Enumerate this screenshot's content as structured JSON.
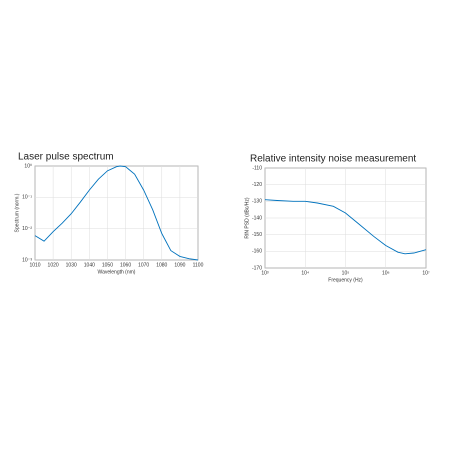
{
  "chart_data": [
    {
      "type": "line",
      "title": "Laser pulse spectrum",
      "x_label": "Wavelength (nm)",
      "y_label": "Spectrum (norm.)",
      "x": [
        1010,
        1015,
        1020,
        1025,
        1030,
        1035,
        1040,
        1045,
        1050,
        1055,
        1057,
        1060,
        1065,
        1070,
        1075,
        1080,
        1085,
        1090,
        1095,
        1100
      ],
      "series": [
        {
          "name": "Spectrum",
          "color": "#0072bd",
          "values": [
            0.006,
            0.004,
            0.008,
            0.015,
            0.03,
            0.07,
            0.17,
            0.38,
            0.7,
            0.95,
            1,
            0.95,
            0.55,
            0.17,
            0.04,
            0.007,
            0.002,
            0.0013,
            0.0011,
            0.001
          ]
        }
      ],
      "xlim": [
        1010,
        1100
      ],
      "xticks": [
        1010,
        1020,
        1030,
        1040,
        1050,
        1060,
        1070,
        1080,
        1090,
        1100
      ],
      "ylim": [
        0.001,
        1
      ],
      "y_log": true,
      "yticks": [
        {
          "value": 0.001,
          "label": "10⁻³"
        },
        {
          "value": 0.01,
          "label": "10⁻²"
        },
        {
          "value": 0.1,
          "label": "10⁻¹"
        },
        {
          "value": 1,
          "label": "10⁰"
        }
      ],
      "grid": true
    },
    {
      "type": "line",
      "title": "Relative intensity noise measurement",
      "x_label": "Frequency (Hz)",
      "y_label": "RIN PSD (dBc/Hz)",
      "x": [
        1000,
        2000,
        5000,
        10000,
        20000,
        50000,
        100000,
        200000,
        500000,
        1000000,
        2000000,
        3000000,
        5000000,
        10000000
      ],
      "series": [
        {
          "name": "RIN",
          "color": "#0072bd",
          "values": [
            -129,
            -129.5,
            -130,
            -130,
            -131,
            -133,
            -137,
            -143,
            -151,
            -156.5,
            -160.5,
            -161.5,
            -161,
            -159
          ]
        }
      ],
      "xlim": [
        1000,
        10000000
      ],
      "x_log": true,
      "xticks": [
        {
          "value": 1000,
          "label": "10³"
        },
        {
          "value": 10000,
          "label": "10⁴"
        },
        {
          "value": 100000,
          "label": "10⁵"
        },
        {
          "value": 1000000,
          "label": "10⁶"
        },
        {
          "value": 10000000,
          "label": "10⁷"
        }
      ],
      "ylim": [
        -170,
        -110
      ],
      "yticks": [
        -170,
        -160,
        -150,
        -140,
        -130,
        -120,
        -110
      ],
      "grid": true
    }
  ]
}
